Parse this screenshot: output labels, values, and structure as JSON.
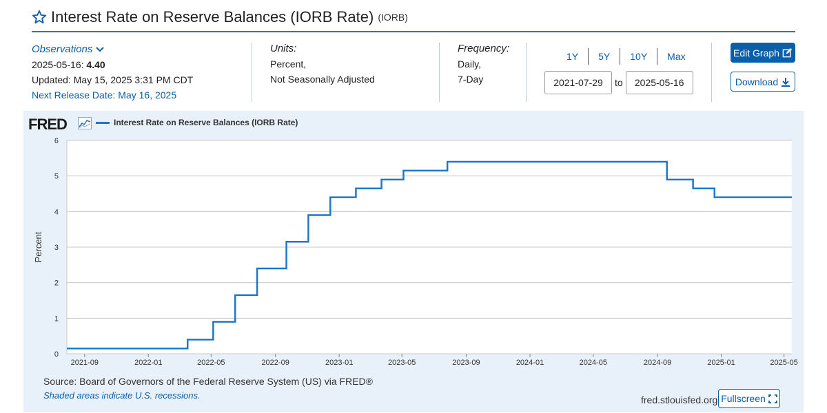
{
  "header": {
    "title": "Interest Rate on Reserve Balances (IORB Rate)",
    "series_code": "(IORB)",
    "star_icon": "star-outline-icon"
  },
  "observations": {
    "label": "Observations",
    "date": "2025-05-16:",
    "value": "4.40",
    "updated": "Updated: May 15, 2025 3:31 PM CDT",
    "next_release": "Next Release Date: May 16, 2025"
  },
  "units": {
    "label": "Units:",
    "line1": "Percent,",
    "line2": "Not Seasonally Adjusted"
  },
  "frequency": {
    "label": "Frequency:",
    "line1": "Daily,",
    "line2": "7-Day"
  },
  "range": {
    "buttons": [
      "1Y",
      "5Y",
      "10Y",
      "Max"
    ],
    "start": "2021-07-29",
    "to": "to",
    "end": "2025-05-16"
  },
  "actions": {
    "edit": "Edit Graph",
    "download": "Download",
    "fullscreen": "Fullscreen"
  },
  "chart_panel": {
    "logo": "FRED",
    "legend": "Interest Rate on Reserve Balances (IORB Rate)",
    "source": "Source: Board of Governors of the Federal Reserve System (US) via FRED®",
    "recession_note": "Shaded areas indicate U.S. recessions.",
    "site": "fred.stlouisfed.org"
  },
  "colors": {
    "accent": "#0b5ea8",
    "series": "#1f77c8",
    "panel": "#e8f1f9"
  },
  "chart_data": {
    "type": "line",
    "step": true,
    "title": "",
    "xlabel": "",
    "ylabel": "Percent",
    "ylim": [
      0,
      6
    ],
    "yticks": [
      0,
      1,
      2,
      3,
      4,
      5,
      6
    ],
    "xlim": [
      "2021-07-29",
      "2025-05-16"
    ],
    "xticks": [
      "2021-09",
      "2022-01",
      "2022-05",
      "2022-09",
      "2023-01",
      "2023-05",
      "2023-09",
      "2024-01",
      "2024-05",
      "2024-09",
      "2025-01",
      "2025-05"
    ],
    "grid": true,
    "legend_position": "top-left",
    "series": [
      {
        "name": "Interest Rate on Reserve Balances (IORB Rate)",
        "color": "#1f77c8",
        "points": [
          [
            "2021-07-29",
            0.15
          ],
          [
            "2022-03-17",
            0.4
          ],
          [
            "2022-05-05",
            0.9
          ],
          [
            "2022-06-16",
            1.65
          ],
          [
            "2022-07-28",
            2.4
          ],
          [
            "2022-09-22",
            3.15
          ],
          [
            "2022-11-03",
            3.9
          ],
          [
            "2022-12-15",
            4.4
          ],
          [
            "2023-02-02",
            4.65
          ],
          [
            "2023-03-23",
            4.9
          ],
          [
            "2023-05-04",
            5.15
          ],
          [
            "2023-07-27",
            5.4
          ],
          [
            "2024-09-19",
            4.9
          ],
          [
            "2024-11-08",
            4.65
          ],
          [
            "2024-12-19",
            4.4
          ],
          [
            "2025-05-16",
            4.4
          ]
        ]
      }
    ]
  }
}
